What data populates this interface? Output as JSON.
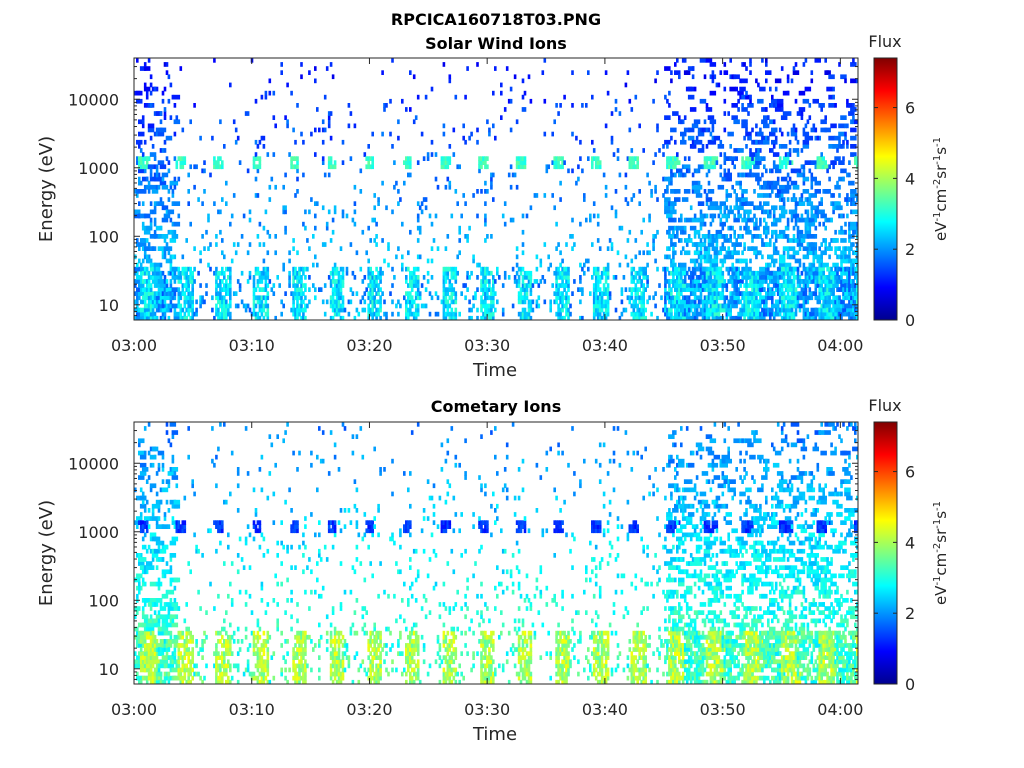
{
  "figure": {
    "title": "RPCICA160718T03.PNG"
  },
  "chart_data": [
    {
      "type": "heatmap",
      "title": "Solar Wind Ions",
      "xlabel": "Time",
      "ylabel": "Energy (eV)",
      "x_ticks": [
        "03:00",
        "03:10",
        "03:20",
        "03:30",
        "03:40",
        "03:50",
        "04:00"
      ],
      "x_range_minutes": [
        0,
        61.5
      ],
      "y_scale": "log",
      "y_ticks": [
        "10",
        "100",
        "1000",
        "10000"
      ],
      "y_range": [
        6,
        40000
      ],
      "colorbar": {
        "label": "Flux",
        "units": "eV-1cm-2sr-1s-1",
        "ticks": [
          "0",
          "2",
          "4",
          "6"
        ],
        "range": [
          0,
          7.4
        ]
      },
      "colormap": [
        "#00008f",
        "#0000ff",
        "#0080ff",
        "#00ffff",
        "#80ff80",
        "#ffff00",
        "#ff8000",
        "#ff0000",
        "#800000"
      ],
      "grid": false,
      "features": {
        "sweep_peak_energy": 1100,
        "sweep_peak_flux": 3.2,
        "low_energy_band": [
          6,
          35
        ],
        "low_energy_flux": 2.6,
        "scattered_background_flux": 1.0,
        "active_period_minutes": [
          45,
          61
        ]
      }
    },
    {
      "type": "heatmap",
      "title": "Cometary Ions",
      "xlabel": "Time",
      "ylabel": "Energy (eV)",
      "x_ticks": [
        "03:00",
        "03:10",
        "03:20",
        "03:30",
        "03:40",
        "03:50",
        "04:00"
      ],
      "x_range_minutes": [
        0,
        61.5
      ],
      "y_scale": "log",
      "y_ticks": [
        "10",
        "100",
        "1000",
        "10000"
      ],
      "y_range": [
        6,
        40000
      ],
      "colorbar": {
        "label": "Flux",
        "units": "eV-1cm-2sr-1s-1",
        "ticks": [
          "0",
          "2",
          "4",
          "6"
        ],
        "range": [
          0,
          7.4
        ]
      },
      "colormap": [
        "#00008f",
        "#0000ff",
        "#0080ff",
        "#00ffff",
        "#80ff80",
        "#ffff00",
        "#ff8000",
        "#ff0000",
        "#800000"
      ],
      "grid": false,
      "features": {
        "sweep_peak_energy": 1100,
        "sweep_peak_flux": 1.3,
        "low_energy_band": [
          6,
          35
        ],
        "low_energy_flux": 4.0,
        "scattered_background_flux": 1.8,
        "active_period_minutes": [
          45,
          61
        ]
      }
    }
  ]
}
